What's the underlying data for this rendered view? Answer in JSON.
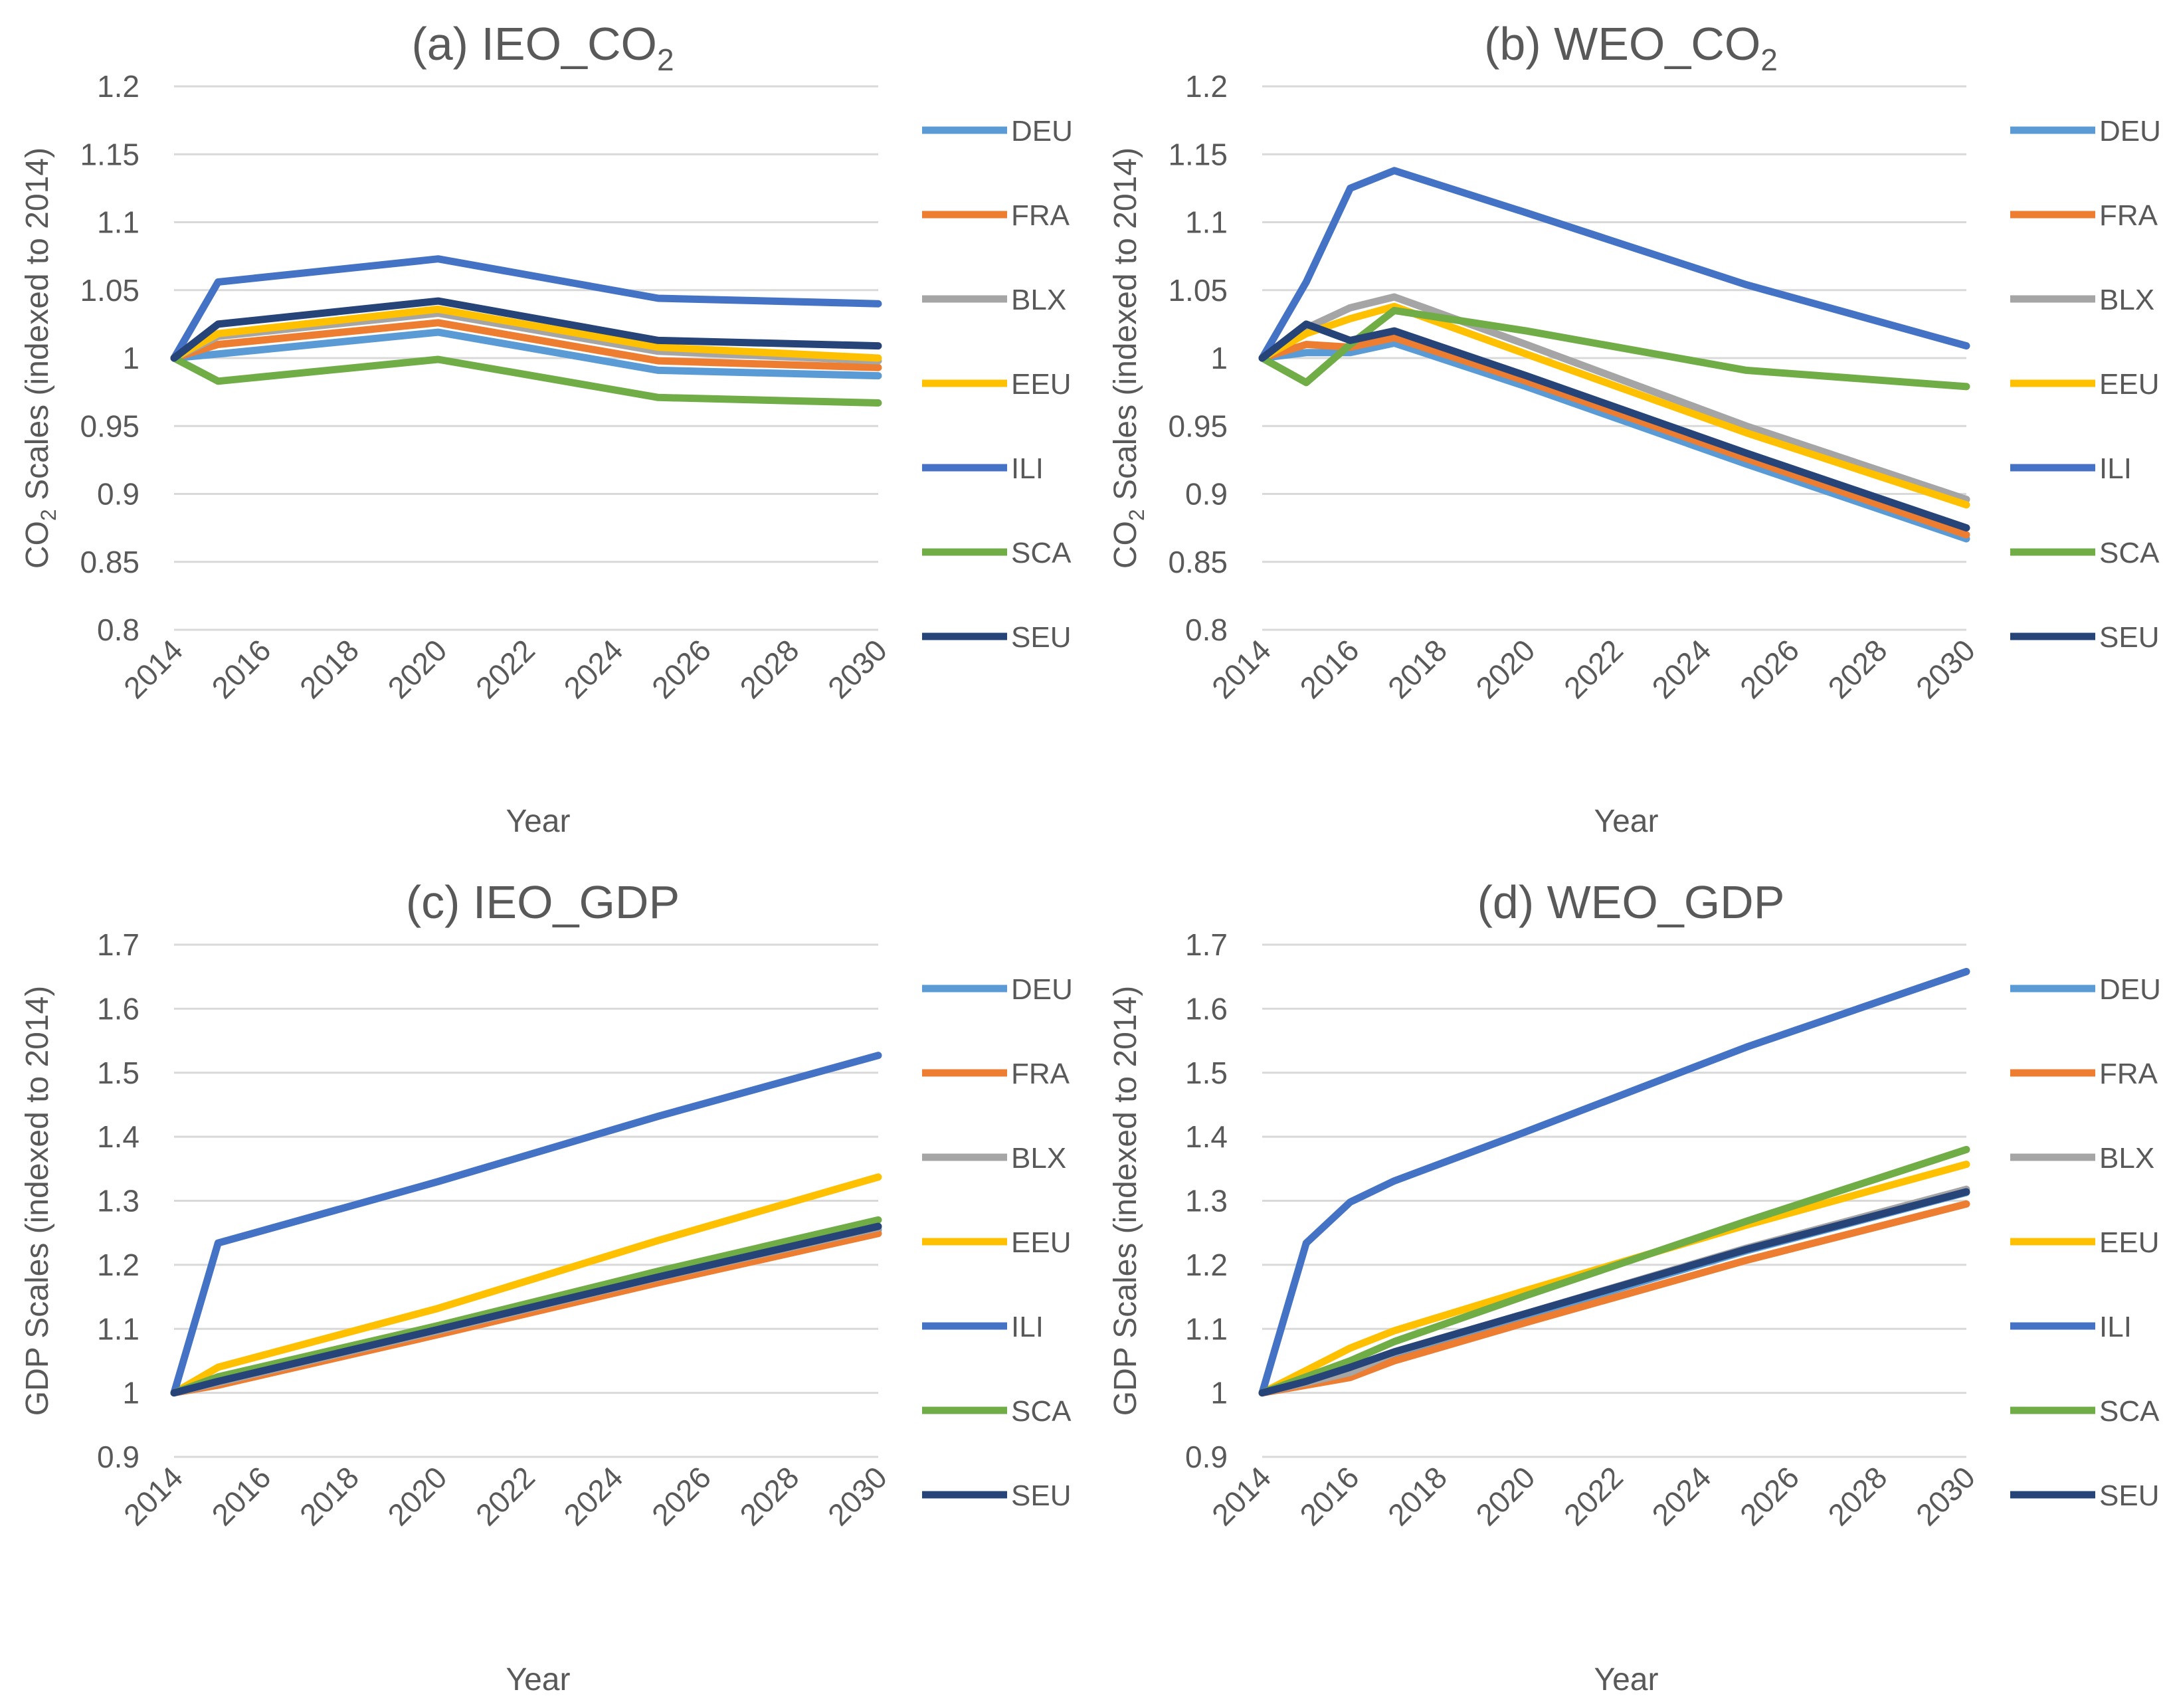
{
  "chart_data": [
    {
      "id": "a",
      "type": "line",
      "title_main": "(a) IEO_CO",
      "title_sub": "2",
      "ylabel_pre": "CO",
      "ylabel_sub": "2",
      "ylabel_post": " Scales (indexed to 2014)",
      "xlabel": "Year",
      "ylim": [
        0.8,
        1.2
      ],
      "yticks": [
        0.8,
        0.85,
        0.9,
        0.95,
        1,
        1.05,
        1.1,
        1.15,
        1.2
      ],
      "ytick_labels": [
        "0.8",
        "0.85",
        "0.9",
        "0.95",
        "1",
        "1.05",
        "1.1",
        "1.15",
        "1.2"
      ],
      "xlim": [
        2014,
        2030
      ],
      "xticks": [
        "2014",
        "2016",
        "2018",
        "2020",
        "2022",
        "2024",
        "2026",
        "2028",
        "2030"
      ],
      "legend": "right",
      "series": [
        {
          "name": "DEU",
          "color": "#5B9BD5",
          "x": [
            2014,
            2015,
            2020,
            2025,
            2030
          ],
          "y": [
            1.0,
            1.003,
            1.019,
            0.991,
            0.987
          ]
        },
        {
          "name": "FRA",
          "color": "#ED7D31",
          "x": [
            2014,
            2015,
            2020,
            2025,
            2030
          ],
          "y": [
            1.0,
            1.01,
            1.026,
            0.998,
            0.993
          ]
        },
        {
          "name": "BLX",
          "color": "#A5A5A5",
          "x": [
            2014,
            2015,
            2020,
            2025,
            2030
          ],
          "y": [
            1.0,
            1.016,
            1.033,
            1.005,
            0.998
          ]
        },
        {
          "name": "EEU",
          "color": "#FFC000",
          "x": [
            2014,
            2015,
            2020,
            2025,
            2030
          ],
          "y": [
            1.0,
            1.018,
            1.036,
            1.008,
            1.0
          ]
        },
        {
          "name": "ILI",
          "color": "#4472C4",
          "x": [
            2014,
            2015,
            2020,
            2025,
            2030
          ],
          "y": [
            1.0,
            1.056,
            1.073,
            1.044,
            1.04
          ]
        },
        {
          "name": "SCA",
          "color": "#70AD47",
          "x": [
            2014,
            2015,
            2020,
            2025,
            2030
          ],
          "y": [
            1.0,
            0.983,
            0.999,
            0.971,
            0.967
          ]
        },
        {
          "name": "SEU",
          "color": "#264478",
          "x": [
            2014,
            2015,
            2020,
            2025,
            2030
          ],
          "y": [
            1.0,
            1.025,
            1.042,
            1.013,
            1.009
          ]
        }
      ]
    },
    {
      "id": "b",
      "type": "line",
      "title_main": "(b) WEO_CO",
      "title_sub": "2",
      "ylabel_pre": "CO",
      "ylabel_sub": "2",
      "ylabel_post": " Scales (indexed to 2014)",
      "xlabel": "Year",
      "ylim": [
        0.8,
        1.2
      ],
      "yticks": [
        0.8,
        0.85,
        0.9,
        0.95,
        1,
        1.05,
        1.1,
        1.15,
        1.2
      ],
      "ytick_labels": [
        "0.8",
        "0.85",
        "0.9",
        "0.95",
        "1",
        "1.05",
        "1.1",
        "1.15",
        "1.2"
      ],
      "xlim": [
        2014,
        2030
      ],
      "xticks": [
        "2014",
        "2016",
        "2018",
        "2020",
        "2022",
        "2024",
        "2026",
        "2028",
        "2030"
      ],
      "legend": "right",
      "series": [
        {
          "name": "DEU",
          "color": "#5B9BD5",
          "x": [
            2014,
            2015,
            2016,
            2017,
            2020,
            2025,
            2030
          ],
          "y": [
            1.0,
            1.004,
            1.004,
            1.011,
            0.979,
            0.922,
            0.867
          ]
        },
        {
          "name": "FRA",
          "color": "#ED7D31",
          "x": [
            2014,
            2015,
            2016,
            2017,
            2020,
            2025,
            2030
          ],
          "y": [
            1.0,
            1.01,
            1.008,
            1.015,
            0.983,
            0.926,
            0.87
          ]
        },
        {
          "name": "BLX",
          "color": "#A5A5A5",
          "x": [
            2014,
            2015,
            2016,
            2017,
            2020,
            2025,
            2030
          ],
          "y": [
            1.0,
            1.022,
            1.037,
            1.045,
            1.01,
            0.95,
            0.896
          ]
        },
        {
          "name": "EEU",
          "color": "#FFC000",
          "x": [
            2014,
            2015,
            2016,
            2017,
            2020,
            2025,
            2030
          ],
          "y": [
            1.0,
            1.018,
            1.029,
            1.038,
            1.003,
            0.945,
            0.892
          ]
        },
        {
          "name": "ILI",
          "color": "#4472C4",
          "x": [
            2014,
            2015,
            2016,
            2017,
            2020,
            2025,
            2030
          ],
          "y": [
            1.0,
            1.056,
            1.125,
            1.138,
            1.107,
            1.054,
            1.009
          ]
        },
        {
          "name": "SCA",
          "color": "#70AD47",
          "x": [
            2014,
            2015,
            2016,
            2017,
            2020,
            2025,
            2030
          ],
          "y": [
            1.0,
            0.982,
            1.01,
            1.035,
            1.02,
            0.991,
            0.979
          ]
        },
        {
          "name": "SEU",
          "color": "#264478",
          "x": [
            2014,
            2015,
            2016,
            2017,
            2020,
            2025,
            2030
          ],
          "y": [
            1.0,
            1.025,
            1.013,
            1.02,
            0.987,
            0.93,
            0.875
          ]
        }
      ]
    },
    {
      "id": "c",
      "type": "line",
      "title_main": "(c) IEO_GDP",
      "title_sub": "",
      "ylabel_pre": "GDP Scales (indexed to 2014)",
      "ylabel_sub": "",
      "ylabel_post": "",
      "xlabel": "Year",
      "ylim": [
        0.9,
        1.7
      ],
      "yticks": [
        0.9,
        1,
        1.1,
        1.2,
        1.3,
        1.4,
        1.5,
        1.6,
        1.7
      ],
      "ytick_labels": [
        "0.9",
        "1",
        "1.1",
        "1.2",
        "1.3",
        "1.4",
        "1.5",
        "1.6",
        "1.7"
      ],
      "xlim": [
        2014,
        2030
      ],
      "xticks": [
        "2014",
        "2016",
        "2018",
        "2020",
        "2022",
        "2024",
        "2026",
        "2028",
        "2030"
      ],
      "legend": "right",
      "series": [
        {
          "name": "DEU",
          "color": "#5B9BD5",
          "x": [
            2014,
            2015,
            2020,
            2025,
            2030
          ],
          "y": [
            1.0,
            1.015,
            1.095,
            1.178,
            1.255
          ]
        },
        {
          "name": "FRA",
          "color": "#ED7D31",
          "x": [
            2014,
            2015,
            2020,
            2025,
            2030
          ],
          "y": [
            1.0,
            1.012,
            1.091,
            1.172,
            1.249
          ]
        },
        {
          "name": "BLX",
          "color": "#A5A5A5",
          "x": [
            2014,
            2015,
            2020,
            2025,
            2030
          ],
          "y": [
            1.0,
            1.016,
            1.097,
            1.18,
            1.258
          ]
        },
        {
          "name": "EEU",
          "color": "#FFC000",
          "x": [
            2014,
            2015,
            2020,
            2025,
            2030
          ],
          "y": [
            1.0,
            1.04,
            1.132,
            1.238,
            1.337
          ]
        },
        {
          "name": "ILI",
          "color": "#4472C4",
          "x": [
            2014,
            2015,
            2020,
            2025,
            2030
          ],
          "y": [
            1.0,
            1.234,
            1.33,
            1.432,
            1.527
          ]
        },
        {
          "name": "SCA",
          "color": "#70AD47",
          "x": [
            2014,
            2015,
            2020,
            2025,
            2030
          ],
          "y": [
            1.0,
            1.025,
            1.105,
            1.19,
            1.27
          ]
        },
        {
          "name": "SEU",
          "color": "#264478",
          "x": [
            2014,
            2015,
            2020,
            2025,
            2030
          ],
          "y": [
            1.0,
            1.018,
            1.099,
            1.181,
            1.26
          ]
        }
      ]
    },
    {
      "id": "d",
      "type": "line",
      "title_main": "(d) WEO_GDP",
      "title_sub": "",
      "ylabel_pre": "GDP Scales (indexed to 2014)",
      "ylabel_sub": "",
      "ylabel_post": "",
      "xlabel": "Year",
      "ylim": [
        0.9,
        1.7
      ],
      "yticks": [
        0.9,
        1,
        1.1,
        1.2,
        1.3,
        1.4,
        1.5,
        1.6,
        1.7
      ],
      "ytick_labels": [
        "0.9",
        "1",
        "1.1",
        "1.2",
        "1.3",
        "1.4",
        "1.5",
        "1.6",
        "1.7"
      ],
      "xlim": [
        2014,
        2030
      ],
      "xticks": [
        "2014",
        "2016",
        "2018",
        "2020",
        "2022",
        "2024",
        "2026",
        "2028",
        "2030"
      ],
      "legend": "right",
      "series": [
        {
          "name": "DEU",
          "color": "#5B9BD5",
          "x": [
            2014,
            2015,
            2016,
            2017,
            2020,
            2025,
            2030
          ],
          "y": [
            1.0,
            1.015,
            1.03,
            1.06,
            1.12,
            1.222,
            1.313
          ]
        },
        {
          "name": "FRA",
          "color": "#ED7D31",
          "x": [
            2014,
            2015,
            2016,
            2017,
            2020,
            2025,
            2030
          ],
          "y": [
            1.0,
            1.012,
            1.024,
            1.05,
            1.11,
            1.207,
            1.295
          ]
        },
        {
          "name": "BLX",
          "color": "#A5A5A5",
          "x": [
            2014,
            2015,
            2016,
            2017,
            2020,
            2025,
            2030
          ],
          "y": [
            1.0,
            1.016,
            1.032,
            1.063,
            1.124,
            1.226,
            1.318
          ]
        },
        {
          "name": "EEU",
          "color": "#FFC000",
          "x": [
            2014,
            2015,
            2016,
            2017,
            2020,
            2025,
            2030
          ],
          "y": [
            1.0,
            1.035,
            1.07,
            1.097,
            1.16,
            1.262,
            1.357
          ]
        },
        {
          "name": "ILI",
          "color": "#4472C4",
          "x": [
            2014,
            2015,
            2016,
            2017,
            2020,
            2025,
            2030
          ],
          "y": [
            1.0,
            1.234,
            1.298,
            1.331,
            1.408,
            1.54,
            1.658
          ]
        },
        {
          "name": "SCA",
          "color": "#70AD47",
          "x": [
            2014,
            2015,
            2016,
            2017,
            2020,
            2025,
            2030
          ],
          "y": [
            1.0,
            1.025,
            1.05,
            1.08,
            1.152,
            1.268,
            1.38
          ]
        },
        {
          "name": "SEU",
          "color": "#264478",
          "x": [
            2014,
            2015,
            2016,
            2017,
            2020,
            2025,
            2030
          ],
          "y": [
            1.0,
            1.018,
            1.04,
            1.064,
            1.124,
            1.224,
            1.314
          ]
        }
      ]
    }
  ]
}
